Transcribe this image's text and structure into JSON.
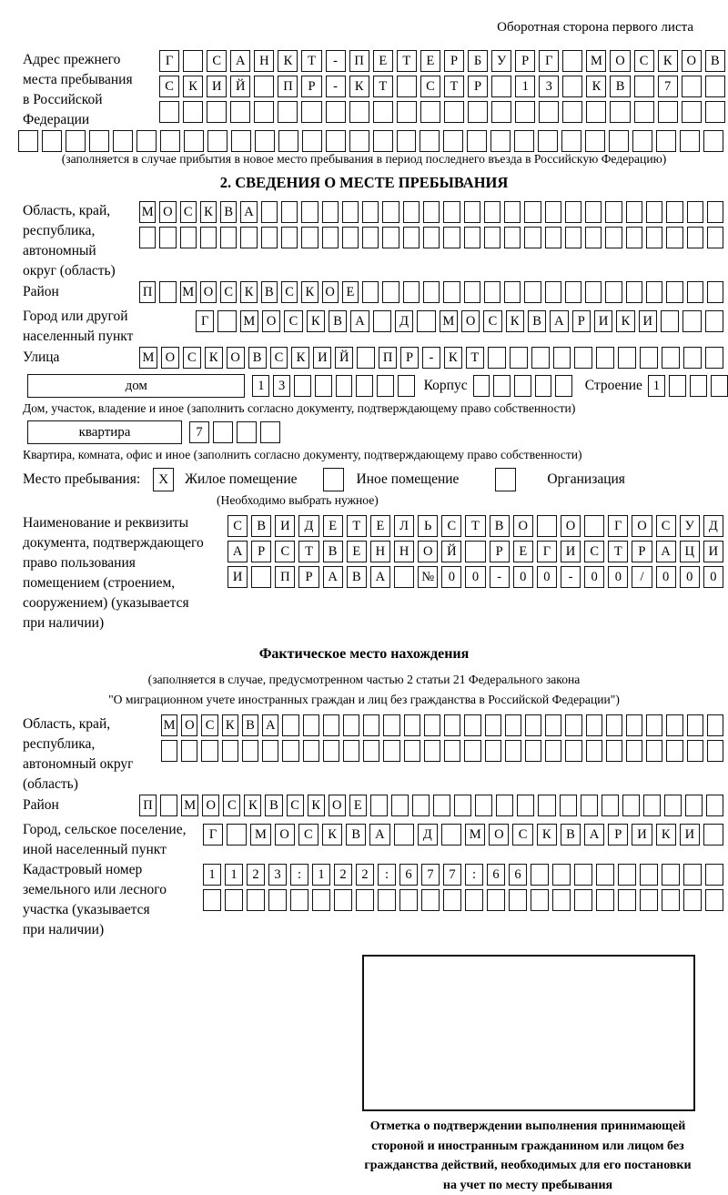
{
  "page": {
    "header_note": "Оборотная сторона первого листа"
  },
  "prev_address": {
    "label_lines": [
      "Адрес прежнего",
      "места пребывания",
      "в Российской",
      "Федерации"
    ],
    "rows": [
      {
        "chars": "Г САНКТ-ПЕТЕРБУРГ МОСКОВ",
        "len": 24
      },
      {
        "chars": "СКИЙ ПР-КТ СТР 13 КВ 7",
        "len": 24
      },
      {
        "chars": "",
        "len": 24
      },
      {
        "chars": "",
        "len": 30
      }
    ],
    "note": "(заполняется в случае прибытия в новое место пребывания в период последнего въезда в Российскую Федерацию)"
  },
  "section2": {
    "title": "2. СВЕДЕНИЯ О МЕСТЕ ПРЕБЫВАНИЯ",
    "region": {
      "label_lines": [
        "Область, край,",
        "республика,",
        "автономный",
        "округ (область)"
      ],
      "rows": [
        {
          "chars": "МОСКВА",
          "len": 29
        },
        {
          "chars": "",
          "len": 29
        }
      ]
    },
    "district": {
      "label": "Район",
      "row": {
        "chars": "П МОСКВСКОЕ",
        "len": 29
      }
    },
    "city": {
      "label_lines": [
        "Город или другой",
        "населенный пункт"
      ],
      "row": {
        "chars": "Г МОСКВА Д МОСКВАРИКИ",
        "len": 24
      }
    },
    "street": {
      "label": "Улица",
      "row": {
        "chars": "МОСКОВСКИЙ ПР-КТ",
        "len": 27
      }
    },
    "house_row": {
      "house_label": "дом",
      "house_digits": {
        "chars": "13",
        "len": 8
      },
      "korpus_label": "Корпус",
      "korpus": {
        "chars": "",
        "len": 5
      },
      "stroenie_label": "Строение",
      "stroenie": {
        "chars": "1",
        "len": 4
      }
    },
    "house_note": "Дом, участок, владение и иное (заполнить согласно документу, подтверждающему право собственности)",
    "apartment_row": {
      "label": "квартира",
      "digits": {
        "chars": "7",
        "len": 4
      }
    },
    "apartment_note": "Квартира, комната, офис и иное (заполнить согласно документу, подтверждающему право собственности)",
    "stay_type": {
      "label": "Место пребывания:",
      "options": [
        {
          "label": "Жилое помещение",
          "mark": "X"
        },
        {
          "label": "Иное помещение",
          "mark": ""
        },
        {
          "label": "Организация",
          "mark": ""
        }
      ],
      "note": "(Необходимо выбрать нужное)"
    },
    "doc": {
      "label_lines": [
        "Наименование и реквизиты",
        "документа, подтверждающего",
        "право пользования",
        "помещением (строением,",
        "сооружением) (указывается",
        "при наличии)"
      ],
      "rows": [
        {
          "chars": "СВИДЕТЕЛЬСТВО О ГОСУД",
          "len": 21
        },
        {
          "chars": "АРСТВЕННОЙ РЕГИСТРАЦИ",
          "len": 21
        },
        {
          "chars": "И ПРАВА №00-00-00/000",
          "len": 21
        }
      ]
    }
  },
  "actual_location": {
    "title": "Фактическое место нахождения",
    "note_lines": [
      "(заполняется в случае, предусмотренном частью 2 статьи 21 Федерального закона",
      "\"О миграционном учете иностранных граждан и лиц без гражданства в Российской Федерации\")"
    ],
    "region": {
      "label_lines": [
        "Область, край,",
        "республика,",
        "автономный округ",
        "(область)"
      ],
      "rows": [
        {
          "chars": "МОСКВА",
          "len": 28
        },
        {
          "chars": "",
          "len": 28
        }
      ]
    },
    "district": {
      "label": "Район",
      "row": {
        "chars": "П МОСКВСКОЕ",
        "len": 28
      }
    },
    "city": {
      "label_lines": [
        "Город, сельское поселение,",
        "иной населенный пункт"
      ],
      "row": {
        "chars": "Г МОСКВА Д МОСКВАРИКИ",
        "len": 22
      }
    },
    "cadastre": {
      "label_lines": [
        "Кадастровый номер",
        "земельного или лесного",
        "участка (указывается",
        "при наличии)"
      ],
      "rows": [
        {
          "chars": "1123:122:677:66",
          "len": 24
        },
        {
          "chars": "",
          "len": 24
        }
      ]
    },
    "stamp_caption_lines": [
      "Отметка о подтверждении выполнения принимающей",
      "стороной и иностранным гражданином или лицом без",
      "гражданства действий, необходимых для его постановки",
      "на учет по месту пребывания"
    ]
  }
}
